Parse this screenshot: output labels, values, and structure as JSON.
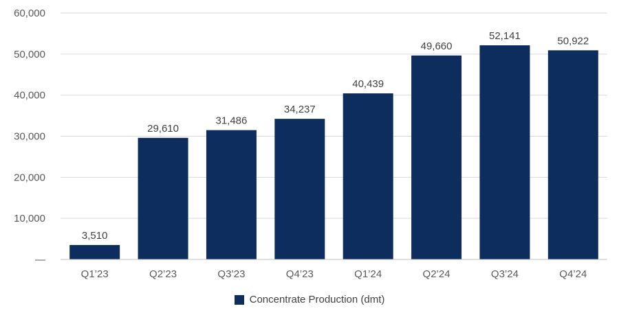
{
  "chart_data": {
    "type": "bar",
    "categories": [
      "Q1’23",
      "Q2’23",
      "Q3’23",
      "Q4’23",
      "Q1’24",
      "Q2’24",
      "Q3’24",
      "Q4’24"
    ],
    "series": [
      {
        "name": "Concentrate Production (dmt)",
        "values": [
          3510,
          29610,
          31486,
          34237,
          40439,
          49660,
          52141,
          50922
        ],
        "color": "#0d2d5e"
      }
    ],
    "data_labels": [
      "3,510",
      "29,610",
      "31,486",
      "34,237",
      "40,439",
      "49,660",
      "52,141",
      "50,922"
    ],
    "y_ticks": [
      0,
      10000,
      20000,
      30000,
      40000,
      50000,
      60000
    ],
    "y_tick_labels": [
      "—",
      "10,000",
      "20,000",
      "30,000",
      "40,000",
      "50,000",
      "60,000"
    ],
    "ylim": [
      0,
      60000
    ],
    "grid": true,
    "legend_position": "bottom",
    "title": "",
    "xlabel": "",
    "ylabel": ""
  }
}
